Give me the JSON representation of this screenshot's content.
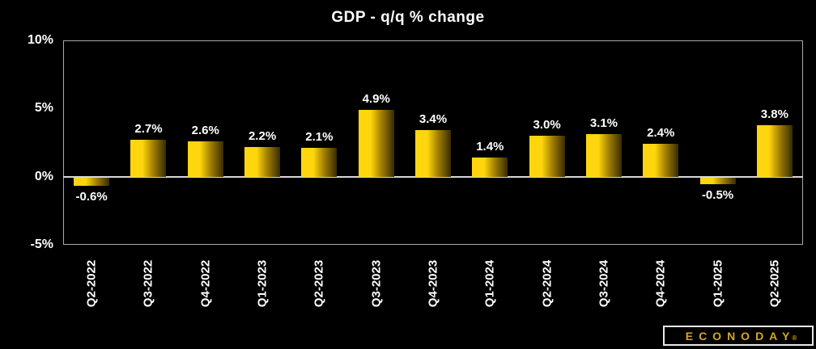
{
  "title": "GDP - q/q % change",
  "branding": {
    "logo_text": "ECONODAY",
    "registered_mark": "®"
  },
  "colors": {
    "background": "#000000",
    "text": "#ffffff",
    "plot_border": "#a9a9a9",
    "zero_line": "#d8d8d8",
    "bar_bright": "#ffd60e",
    "bar_mid": "#9c7a00",
    "bar_dark": "#382c00",
    "logo_gold": "#d6a625",
    "logo_border": "#e8e8e8"
  },
  "chart_data": {
    "type": "bar",
    "title": "GDP - q/q % change",
    "categories": [
      "Q2-2022",
      "Q3-2022",
      "Q4-2022",
      "Q1-2023",
      "Q2-2023",
      "Q3-2023",
      "Q4-2023",
      "Q1-2024",
      "Q2-2024",
      "Q3-2024",
      "Q4-2024",
      "Q1-2025",
      "Q2-2025"
    ],
    "values": [
      -0.6,
      2.7,
      2.6,
      2.2,
      2.1,
      4.9,
      3.4,
      1.4,
      3.0,
      3.1,
      2.4,
      -0.5,
      3.8
    ],
    "data_labels": [
      "-0.6%",
      "2.7%",
      "2.6%",
      "2.2%",
      "2.1%",
      "4.9%",
      "3.4%",
      "1.4%",
      "3.0%",
      "3.1%",
      "2.4%",
      "-0.5%",
      "3.8%"
    ],
    "y_ticks": [
      "10%",
      "5%",
      "0%",
      "-5%"
    ],
    "y_tick_values": [
      10,
      5,
      0,
      -5
    ],
    "ylim": [
      -5,
      10
    ],
    "xlabel": "",
    "ylabel": "",
    "grid": false,
    "legend_position": "none",
    "bar_orientation": "vertical",
    "x_tick_rotation_deg": 90
  }
}
